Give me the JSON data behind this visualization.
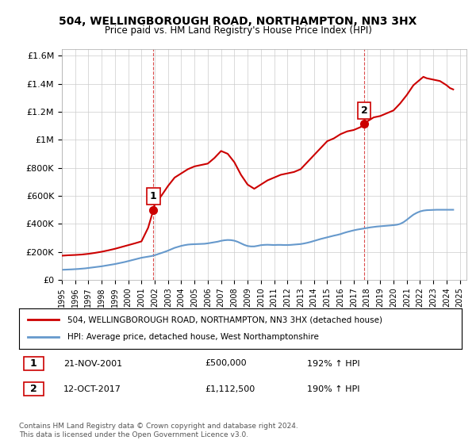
{
  "title": "504, WELLINGBOROUGH ROAD, NORTHAMPTON, NN3 3HX",
  "subtitle": "Price paid vs. HM Land Registry's House Price Index (HPI)",
  "ylim": [
    0,
    1650000
  ],
  "yticks": [
    0,
    200000,
    400000,
    600000,
    800000,
    1000000,
    1200000,
    1400000,
    1600000
  ],
  "ytick_labels": [
    "£0",
    "£200K",
    "£400K",
    "£600K",
    "£800K",
    "£1M",
    "£1.2M",
    "£1.4M",
    "£1.6M"
  ],
  "xlim_start": 1995.0,
  "xlim_end": 2025.5,
  "xticks": [
    1995,
    1996,
    1997,
    1998,
    1999,
    2000,
    2001,
    2002,
    2003,
    2004,
    2005,
    2006,
    2007,
    2008,
    2009,
    2010,
    2011,
    2012,
    2013,
    2014,
    2015,
    2016,
    2017,
    2018,
    2019,
    2020,
    2021,
    2022,
    2023,
    2024,
    2025
  ],
  "sale1_x": 2001.9,
  "sale1_y": 500000,
  "sale1_label": "1",
  "sale1_date": "21-NOV-2001",
  "sale1_price": "£500,000",
  "sale1_hpi": "192% ↑ HPI",
  "sale2_x": 2017.79,
  "sale2_y": 1112500,
  "sale2_label": "2",
  "sale2_date": "12-OCT-2017",
  "sale2_price": "£1,112,500",
  "sale2_hpi": "190% ↑ HPI",
  "property_line_color": "#cc0000",
  "hpi_line_color": "#6699cc",
  "vline_color": "#cc0000",
  "vline_style": "--",
  "legend_property_label": "504, WELLINGBOROUGH ROAD, NORTHAMPTON, NN3 3HX (detached house)",
  "legend_hpi_label": "HPI: Average price, detached house, West Northamptonshire",
  "footer_text": "Contains HM Land Registry data © Crown copyright and database right 2024.\nThis data is licensed under the Open Government Licence v3.0.",
  "background_color": "#ffffff",
  "grid_color": "#cccccc",
  "hpi_data_x": [
    1995.0,
    1995.25,
    1995.5,
    1995.75,
    1996.0,
    1996.25,
    1996.5,
    1996.75,
    1997.0,
    1997.25,
    1997.5,
    1997.75,
    1998.0,
    1998.25,
    1998.5,
    1998.75,
    1999.0,
    1999.25,
    1999.5,
    1999.75,
    2000.0,
    2000.25,
    2000.5,
    2000.75,
    2001.0,
    2001.25,
    2001.5,
    2001.75,
    2002.0,
    2002.25,
    2002.5,
    2002.75,
    2003.0,
    2003.25,
    2003.5,
    2003.75,
    2004.0,
    2004.25,
    2004.5,
    2004.75,
    2005.0,
    2005.25,
    2005.5,
    2005.75,
    2006.0,
    2006.25,
    2006.5,
    2006.75,
    2007.0,
    2007.25,
    2007.5,
    2007.75,
    2008.0,
    2008.25,
    2008.5,
    2008.75,
    2009.0,
    2009.25,
    2009.5,
    2009.75,
    2010.0,
    2010.25,
    2010.5,
    2010.75,
    2011.0,
    2011.25,
    2011.5,
    2011.75,
    2012.0,
    2012.25,
    2012.5,
    2012.75,
    2013.0,
    2013.25,
    2013.5,
    2013.75,
    2014.0,
    2014.25,
    2014.5,
    2014.75,
    2015.0,
    2015.25,
    2015.5,
    2015.75,
    2016.0,
    2016.25,
    2016.5,
    2016.75,
    2017.0,
    2017.25,
    2017.5,
    2017.75,
    2018.0,
    2018.25,
    2018.5,
    2018.75,
    2019.0,
    2019.25,
    2019.5,
    2019.75,
    2020.0,
    2020.25,
    2020.5,
    2020.75,
    2021.0,
    2021.25,
    2021.5,
    2021.75,
    2022.0,
    2022.25,
    2022.5,
    2022.75,
    2023.0,
    2023.25,
    2023.5,
    2023.75,
    2024.0,
    2024.25,
    2024.5
  ],
  "hpi_data_y": [
    71000,
    72000,
    73000,
    74000,
    75500,
    77000,
    79000,
    81000,
    84000,
    87000,
    90000,
    93000,
    96000,
    100000,
    104000,
    108000,
    112000,
    117000,
    122000,
    127000,
    133000,
    139000,
    145000,
    151000,
    157000,
    161000,
    165000,
    169000,
    175000,
    183000,
    191000,
    199000,
    208000,
    218000,
    228000,
    235000,
    242000,
    247000,
    251000,
    253000,
    254000,
    255000,
    256000,
    257000,
    260000,
    264000,
    268000,
    272000,
    278000,
    282000,
    284000,
    283000,
    279000,
    271000,
    260000,
    249000,
    241000,
    238000,
    238000,
    242000,
    247000,
    249000,
    250000,
    249000,
    248000,
    249000,
    249000,
    248000,
    248000,
    249000,
    251000,
    253000,
    255000,
    259000,
    264000,
    270000,
    277000,
    284000,
    291000,
    297000,
    303000,
    309000,
    315000,
    320000,
    326000,
    334000,
    341000,
    347000,
    353000,
    358000,
    362000,
    366000,
    370000,
    374000,
    377000,
    380000,
    382000,
    384000,
    386000,
    388000,
    390000,
    393000,
    399000,
    411000,
    428000,
    447000,
    465000,
    478000,
    488000,
    494000,
    497000,
    498000,
    499000,
    500000,
    500000,
    500000,
    500000,
    500000,
    500000
  ],
  "property_data_x": [
    1995.0,
    1995.5,
    1996.0,
    1996.5,
    1997.0,
    1997.5,
    1998.0,
    1998.5,
    1999.0,
    1999.5,
    2000.0,
    2000.5,
    2001.0,
    2001.5,
    2001.9,
    2002.0,
    2002.25,
    2002.5,
    2003.0,
    2003.5,
    2004.0,
    2004.5,
    2005.0,
    2005.5,
    2006.0,
    2006.5,
    2007.0,
    2007.5,
    2008.0,
    2008.5,
    2009.0,
    2009.5,
    2010.0,
    2010.5,
    2011.0,
    2011.5,
    2012.0,
    2012.5,
    2013.0,
    2013.5,
    2014.0,
    2014.5,
    2015.0,
    2015.5,
    2016.0,
    2016.5,
    2017.0,
    2017.5,
    2017.79,
    2018.0,
    2018.5,
    2019.0,
    2019.5,
    2020.0,
    2020.5,
    2021.0,
    2021.5,
    2022.0,
    2022.25,
    2022.5,
    2023.0,
    2023.5,
    2024.0,
    2024.25,
    2024.5
  ],
  "property_data_y": [
    171700,
    175000,
    177000,
    180000,
    185000,
    192000,
    200000,
    210000,
    221000,
    234000,
    247000,
    260000,
    274000,
    371000,
    500000,
    540000,
    570000,
    600000,
    670000,
    730000,
    760000,
    790000,
    810000,
    820000,
    830000,
    870000,
    920000,
    900000,
    840000,
    750000,
    680000,
    650000,
    680000,
    710000,
    730000,
    750000,
    760000,
    770000,
    790000,
    840000,
    890000,
    940000,
    990000,
    1010000,
    1040000,
    1060000,
    1070000,
    1090000,
    1112500,
    1130000,
    1160000,
    1170000,
    1190000,
    1210000,
    1260000,
    1320000,
    1390000,
    1430000,
    1450000,
    1440000,
    1430000,
    1420000,
    1390000,
    1370000,
    1360000
  ]
}
